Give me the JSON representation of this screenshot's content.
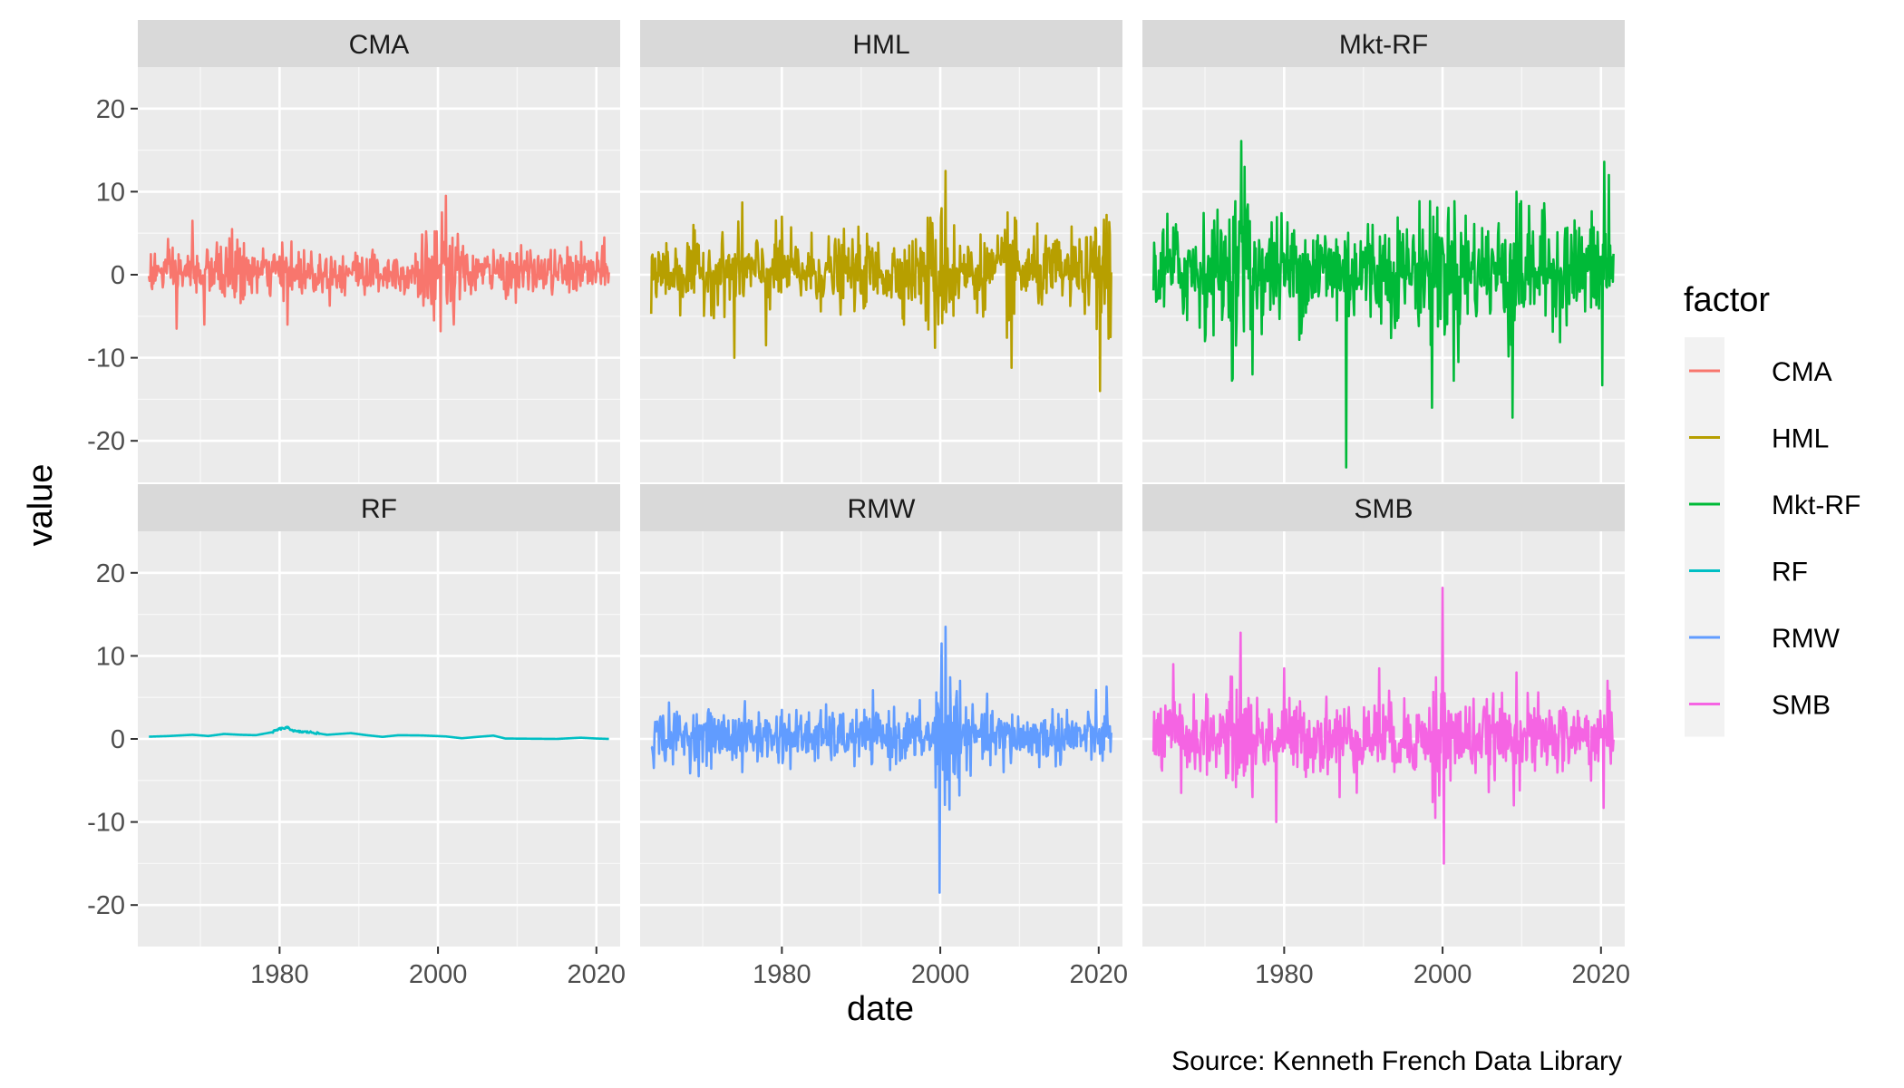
{
  "chart_data": {
    "type": "line",
    "layout": "facet_wrap 2x3, shared axes",
    "xlabel": "date",
    "ylabel": "value",
    "caption": "Source: Kenneth French Data Library",
    "xlim": [
      "1963-07",
      "2021-08"
    ],
    "ylim": [
      -25,
      25
    ],
    "x_ticks": [
      "1980",
      "2000",
      "2020"
    ],
    "y_ticks": [
      "-20",
      "-10",
      "0",
      "10",
      "20"
    ],
    "y_tick_values": [
      -20,
      -10,
      0,
      10,
      20
    ],
    "grid": true,
    "legend": {
      "title": "factor",
      "position": "right"
    },
    "panels": [
      {
        "name": "CMA",
        "color": "#F8766D",
        "ymin": -6.8,
        "ymax": 9.5,
        "baseline": 0.3,
        "amp": 1.8
      },
      {
        "name": "HML",
        "color": "#B79F00",
        "ymin": -14.0,
        "ymax": 12.5,
        "baseline": 0.3,
        "amp": 2.8
      },
      {
        "name": "Mkt-RF",
        "color": "#00BA38",
        "ymin": -23.2,
        "ymax": 16.1,
        "baseline": 0.6,
        "amp": 4.3
      },
      {
        "name": "RF",
        "color": "#00BFC4",
        "ymin": 0.0,
        "ymax": 1.4,
        "baseline": 0.35,
        "amp": 0.0
      },
      {
        "name": "RMW",
        "color": "#619CFF",
        "ymin": -18.5,
        "ymax": 13.5,
        "baseline": 0.25,
        "amp": 2.1
      },
      {
        "name": "SMB",
        "color": "#F564E3",
        "ymin": -15.0,
        "ymax": 18.2,
        "baseline": 0.2,
        "amp": 2.9
      }
    ],
    "series": [
      {
        "name": "CMA",
        "color": "#F8766D"
      },
      {
        "name": "HML",
        "color": "#B79F00"
      },
      {
        "name": "Mkt-RF",
        "color": "#00BA38"
      },
      {
        "name": "RF",
        "color": "#00BFC4"
      },
      {
        "name": "RMW",
        "color": "#619CFF"
      },
      {
        "name": "SMB",
        "color": "#F564E3"
      }
    ],
    "rf_path": [
      [
        1963.5,
        0.27
      ],
      [
        1966,
        0.35
      ],
      [
        1969,
        0.5
      ],
      [
        1971,
        0.35
      ],
      [
        1973,
        0.6
      ],
      [
        1975,
        0.5
      ],
      [
        1977,
        0.45
      ],
      [
        1979,
        0.8
      ],
      [
        1980,
        1.2
      ],
      [
        1981,
        1.35
      ],
      [
        1982,
        0.9
      ],
      [
        1984,
        0.8
      ],
      [
        1986,
        0.5
      ],
      [
        1989,
        0.7
      ],
      [
        1991,
        0.45
      ],
      [
        1993,
        0.25
      ],
      [
        1995,
        0.45
      ],
      [
        1998,
        0.42
      ],
      [
        2001,
        0.3
      ],
      [
        2003,
        0.08
      ],
      [
        2005,
        0.25
      ],
      [
        2007,
        0.4
      ],
      [
        2008.5,
        0.05
      ],
      [
        2015,
        0.0
      ],
      [
        2018,
        0.15
      ],
      [
        2020,
        0.05
      ],
      [
        2021.6,
        0.0
      ]
    ],
    "extremes": {
      "CMA": [
        [
          1967,
          -6.5
        ],
        [
          1969,
          6.5
        ],
        [
          1970.5,
          -6
        ],
        [
          1974,
          5.5
        ],
        [
          1981,
          -6
        ],
        [
          1981.5,
          4
        ],
        [
          2000.3,
          -6.8
        ],
        [
          2001,
          9.5
        ],
        [
          2002,
          -6
        ],
        [
          2000.5,
          7.5
        ],
        [
          1999.5,
          -5.5
        ],
        [
          2021,
          4.5
        ]
      ],
      "HML": [
        [
          1974,
          -10
        ],
        [
          1975,
          8.7
        ],
        [
          1978,
          -8.5
        ],
        [
          1980,
          7
        ],
        [
          1999.3,
          -8.8
        ],
        [
          2000.7,
          12.5
        ],
        [
          2000.2,
          8
        ],
        [
          2009,
          -11.2
        ],
        [
          2008.5,
          7.5
        ],
        [
          2020.2,
          -14
        ],
        [
          2021,
          7.2
        ],
        [
          2021.5,
          -7.5
        ]
      ],
      "Mkt-RF": [
        [
          1970,
          -8
        ],
        [
          1973.5,
          -12.5
        ],
        [
          1974.6,
          16.1
        ],
        [
          1975,
          13
        ],
        [
          1976,
          -12
        ],
        [
          1987.8,
          -23.2
        ],
        [
          1998.7,
          -16
        ],
        [
          1998.8,
          7
        ],
        [
          2002,
          -10.5
        ],
        [
          2008.8,
          -17.2
        ],
        [
          2009.3,
          10
        ],
        [
          2020.2,
          -13.3
        ],
        [
          2020.4,
          13.6
        ],
        [
          2021,
          12
        ]
      ],
      "RMW": [
        [
          1965,
          2.8
        ],
        [
          1975,
          -4
        ],
        [
          1980,
          3.5
        ],
        [
          1999.9,
          -18.5
        ],
        [
          2000.2,
          11.5
        ],
        [
          2000.7,
          13.5
        ],
        [
          2001.2,
          -8.5
        ],
        [
          2002.5,
          7
        ],
        [
          2008,
          -4
        ],
        [
          2021,
          6.3
        ],
        [
          2016,
          3.5
        ]
      ],
      "SMB": [
        [
          1966,
          9
        ],
        [
          1967,
          -6.5
        ],
        [
          1974.5,
          12.8
        ],
        [
          1976,
          -7
        ],
        [
          1979,
          -10
        ],
        [
          1980,
          8.5
        ],
        [
          1987,
          -7
        ],
        [
          1992,
          8.5
        ],
        [
          1999.1,
          -9.5
        ],
        [
          2000.0,
          18.2
        ],
        [
          2000.2,
          -15
        ],
        [
          2001,
          -5
        ],
        [
          2009,
          -8
        ],
        [
          2009.3,
          8
        ],
        [
          2020.3,
          -8.3
        ],
        [
          2020.8,
          7
        ]
      ]
    },
    "n_points": 698,
    "start_year": 1963.5,
    "end_year": 2021.58
  }
}
